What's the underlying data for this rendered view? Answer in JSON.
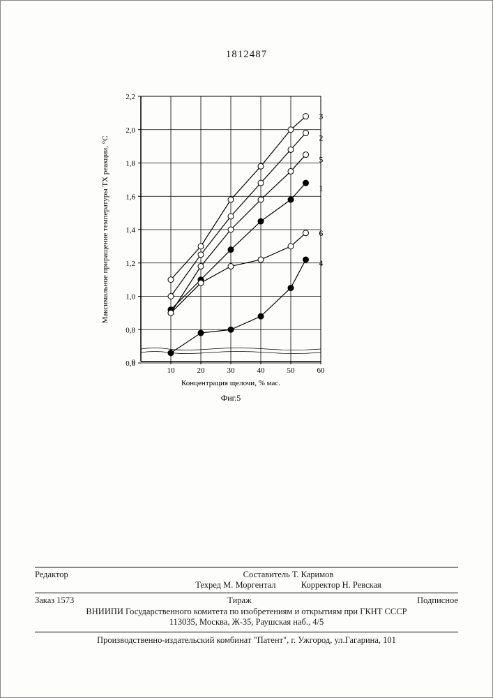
{
  "doc_number": "1812487",
  "chart": {
    "type": "line",
    "ylabel": "Максимальное приращение температуры ТХ реакции, °С",
    "xlabel": "Концентрация щелочи, % мас.",
    "caption": "Фиг.5",
    "xlim": [
      0,
      60
    ],
    "ylim_upper": [
      0.6,
      2.2
    ],
    "ytick_step": 0.2,
    "xtick_step": 10,
    "yticks": [
      "0",
      "0,6",
      "0,8",
      "1,0",
      "1,2",
      "1,4",
      "1,6",
      "1,8",
      "2,0",
      "2,2"
    ],
    "xticks": [
      "10",
      "20",
      "30",
      "40",
      "50",
      "60"
    ],
    "axis_color": "#000000",
    "grid_color": "#000000",
    "background_color": "#fdfdfb",
    "label_fontsize": 11,
    "tick_fontsize": 11,
    "line_width": 1.2,
    "marker_size": 4,
    "marker_stroke": "#000000",
    "marker_fill_open": "#ffffff",
    "marker_fill_solid": "#000000",
    "break_y_at": 0.55,
    "series": [
      {
        "id": "3",
        "x": [
          10,
          20,
          30,
          40,
          50,
          55
        ],
        "y": [
          1.1,
          1.3,
          1.58,
          1.78,
          2.0,
          2.08
        ],
        "marker": "open"
      },
      {
        "id": "2",
        "x": [
          10,
          20,
          30,
          40,
          50,
          55
        ],
        "y": [
          1.0,
          1.25,
          1.48,
          1.68,
          1.88,
          1.98
        ],
        "marker": "open"
      },
      {
        "id": "5",
        "x": [
          10,
          20,
          30,
          40,
          50,
          55
        ],
        "y": [
          0.9,
          1.18,
          1.4,
          1.58,
          1.75,
          1.85
        ],
        "marker": "open"
      },
      {
        "id": "1",
        "x": [
          10,
          20,
          30,
          40,
          50,
          55
        ],
        "y": [
          0.92,
          1.1,
          1.28,
          1.45,
          1.58,
          1.68
        ],
        "marker": "solid"
      },
      {
        "id": "6",
        "x": [
          10,
          20,
          30,
          40,
          50,
          55
        ],
        "y": [
          0.9,
          1.08,
          1.18,
          1.22,
          1.3,
          1.38
        ],
        "marker": "open"
      },
      {
        "id": "4",
        "x": [
          10,
          20,
          30,
          40,
          50,
          55
        ],
        "y": [
          0.66,
          0.78,
          0.8,
          0.88,
          1.05,
          1.22
        ],
        "marker": "solid"
      }
    ],
    "series_label_positions": {
      "3": {
        "x": 58,
        "y": 2.08
      },
      "2": {
        "x": 58,
        "y": 1.95
      },
      "5": {
        "x": 58,
        "y": 1.82
      },
      "1": {
        "x": 58,
        "y": 1.65
      },
      "6": {
        "x": 58,
        "y": 1.38
      },
      "4": {
        "x": 58,
        "y": 1.2
      }
    }
  },
  "footer": {
    "editor_label": "Редактор",
    "compiler_label": "Составитель",
    "compiler_name": "Т. Каримов",
    "techred_label": "Техред",
    "techred_name": "М. Моргентал",
    "corrector_label": "Корректор",
    "corrector_name": "Н. Ревская",
    "order_label": "Заказ 1573",
    "tirazh_label": "Тираж",
    "podpisnoe": "Подписное",
    "org_line1": "ВНИИПИ Государственного комитета по изобретениям и открытиям при ГКНТ СССР",
    "org_line2": "113035, Москва, Ж-35, Раушская наб., 4/5",
    "printer_line": "Производственно-издательский комбинат \"Патент\", г. Ужгород, ул.Гагарина, 101"
  }
}
